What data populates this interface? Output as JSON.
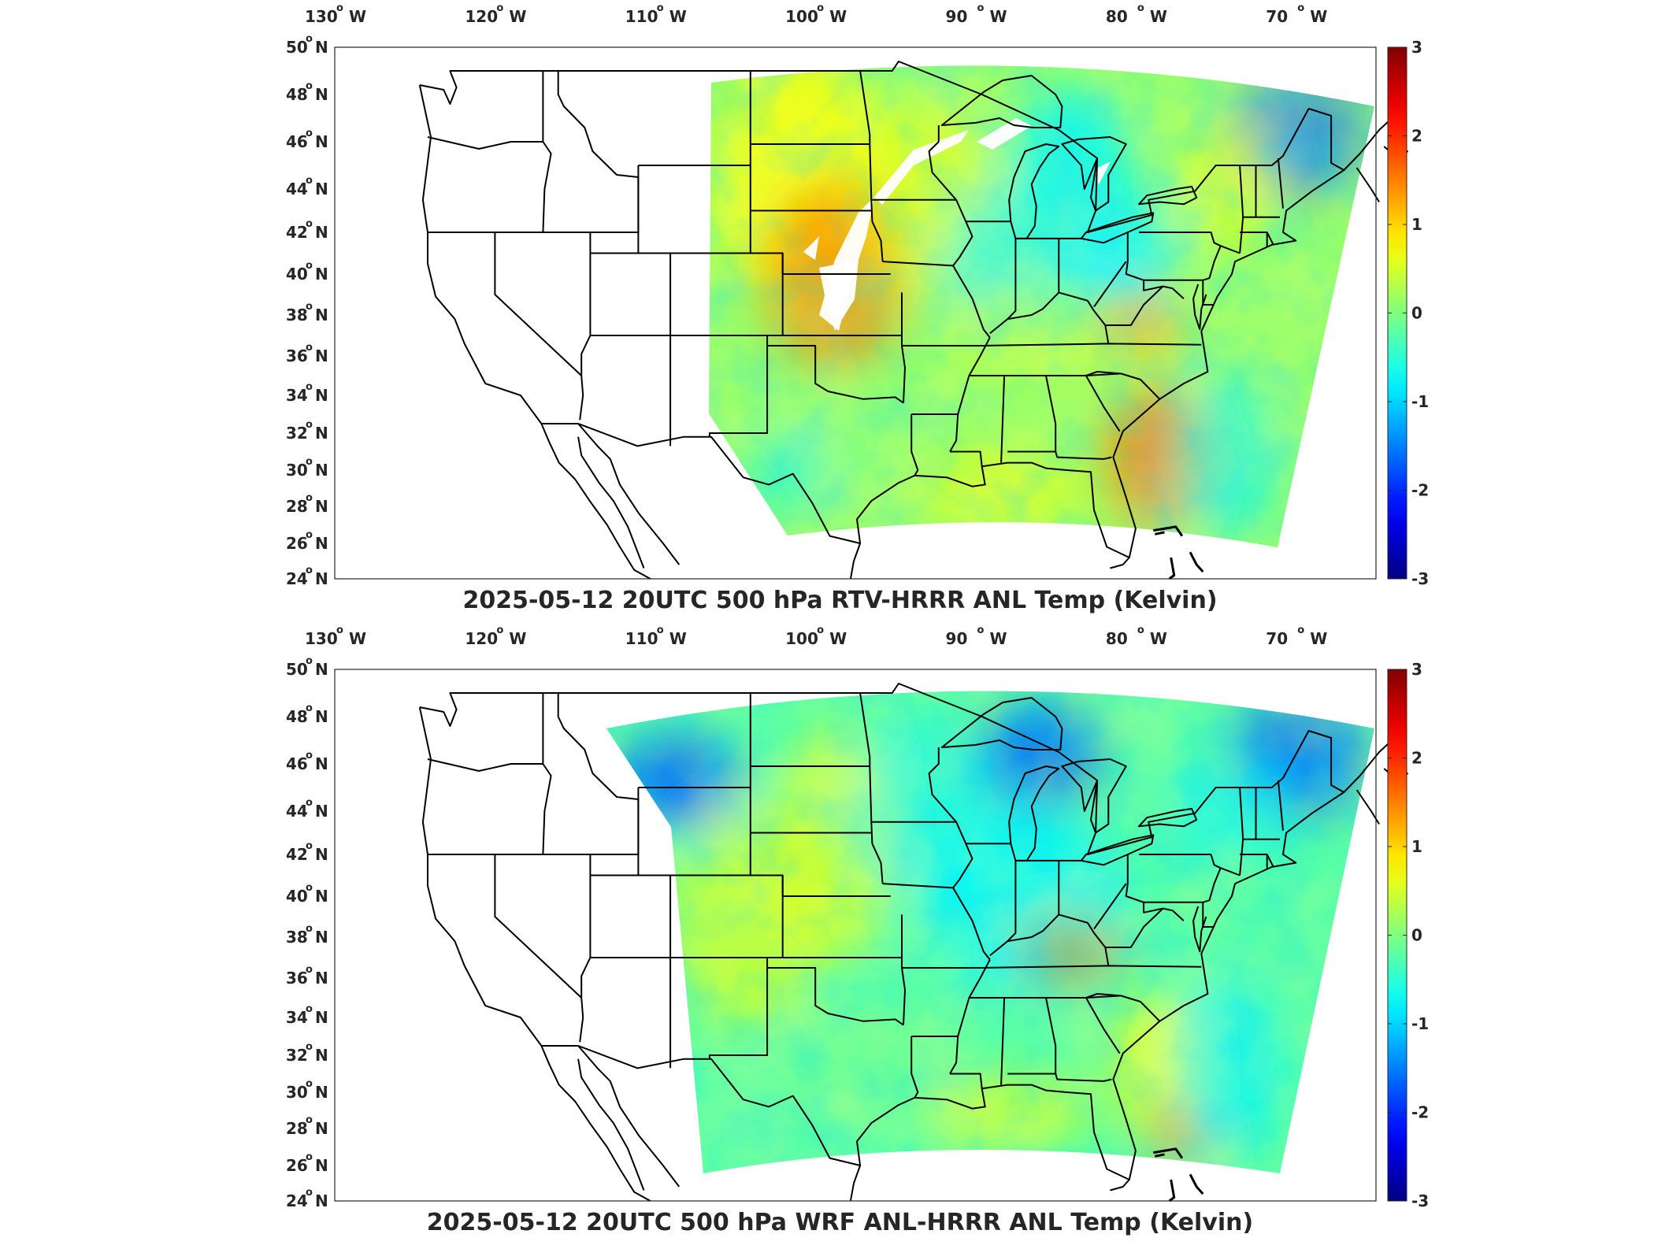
{
  "panels": [
    {
      "title": "2025-05-12 20UTC 500 hPa RTV-HRRR ANL Temp (Kelvin)",
      "variant": "rtv",
      "colorbar": {
        "ticks": [
          "3",
          "2",
          "1",
          "0",
          "-1",
          "-2",
          "-3"
        ],
        "range": [
          -3,
          3
        ],
        "colormap": "jet"
      },
      "longitude_labels": [
        "130",
        "120",
        "110",
        "100",
        "90",
        "80",
        "70"
      ],
      "longitude_hemisphere": "W",
      "latitude_labels": [
        "50",
        "48",
        "46",
        "44",
        "42",
        "40",
        "38",
        "36",
        "34",
        "32",
        "30",
        "28",
        "26",
        "24"
      ],
      "latitude_hemisphere": "N"
    },
    {
      "title": "2025-05-12 20UTC 500 hPa WRF ANL-HRRR ANL Temp (Kelvin)",
      "variant": "wrf",
      "colorbar": {
        "ticks": [
          "3",
          "2",
          "1",
          "0",
          "-1",
          "-2",
          "-3"
        ],
        "range": [
          -3,
          3
        ],
        "colormap": "jet"
      },
      "longitude_labels": [
        "130",
        "120",
        "110",
        "100",
        "90",
        "80",
        "70"
      ],
      "longitude_hemisphere": "W",
      "latitude_labels": [
        "50",
        "48",
        "46",
        "44",
        "42",
        "40",
        "38",
        "36",
        "34",
        "32",
        "30",
        "28",
        "26",
        "24"
      ],
      "latitude_hemisphere": "N"
    }
  ],
  "colors": {
    "border": "#000000",
    "background": "#ffffff",
    "text": "#262626"
  }
}
